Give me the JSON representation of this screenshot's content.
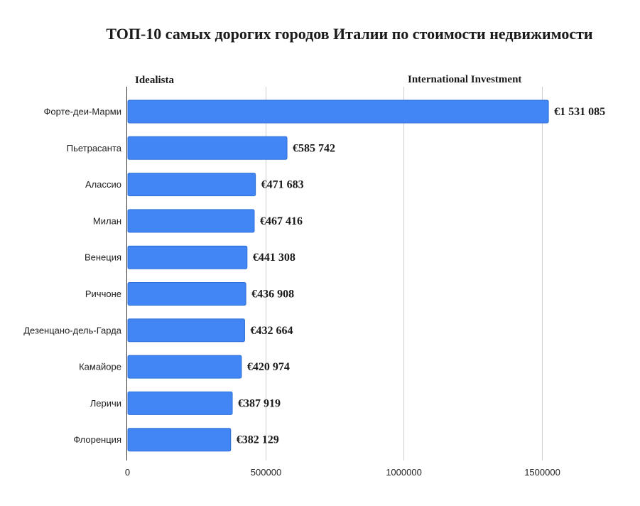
{
  "chart_data": {
    "type": "bar",
    "orientation": "horizontal",
    "title": "ТОП-10 самых дорогих городов Италии по стоимости недвижимости",
    "sources": [
      "Idealista",
      "International Investment"
    ],
    "categories": [
      "Форте-деи-Марми",
      "Пьетрасанта",
      "Алассио",
      "Милан",
      "Венеция",
      "Риччоне",
      "Дезенцано-дель-Гарда",
      "Камайоре",
      "Леричи",
      "Флоренция"
    ],
    "values": [
      1531085,
      585742,
      471683,
      467416,
      441308,
      436908,
      432664,
      420974,
      387919,
      382129
    ],
    "value_labels": [
      "€1 531 085",
      "€585 742",
      "€471 683",
      "€467 416",
      "€441 308",
      "€436 908",
      "€432 664",
      "€420 974",
      "€387 919",
      "€382 129"
    ],
    "xlim": [
      0,
      1500000
    ],
    "xticks": [
      0,
      500000,
      1000000,
      1500000
    ],
    "xtick_labels": [
      "0",
      "500000",
      "1000000",
      "1500000"
    ],
    "grid": true,
    "bar_color": "#4285f4",
    "bar_edge_color": "#2f6fd6"
  }
}
